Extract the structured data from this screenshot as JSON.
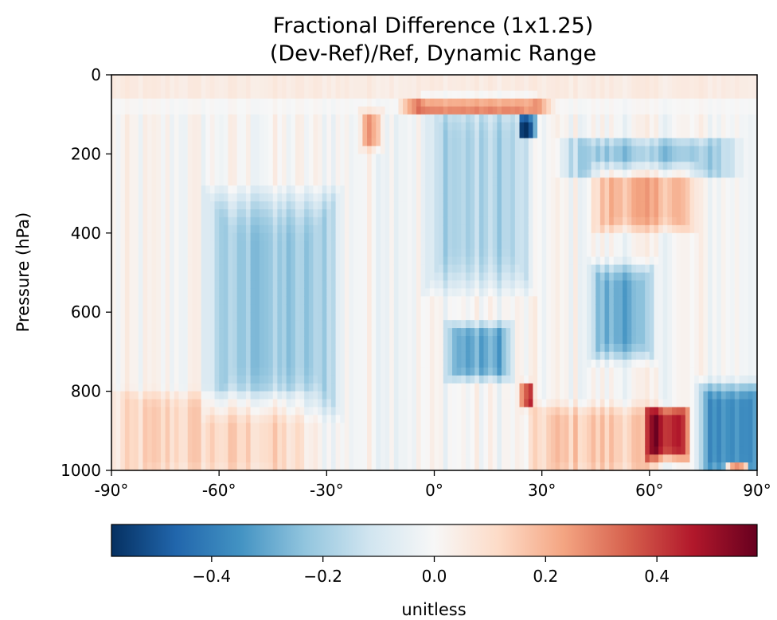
{
  "chart_data": {
    "type": "heatmap",
    "title": "Fractional Difference (1x1.25)",
    "subtitle": "(Dev-Ref)/Ref, Dynamic Range",
    "xlabel": "",
    "ylabel": "Pressure (hPa)",
    "xlim": [
      -90,
      90
    ],
    "ylim": [
      1000,
      0
    ],
    "y_inverted": true,
    "x_ticks": [
      -90,
      -60,
      -30,
      0,
      30,
      60,
      90
    ],
    "x_tick_labels": [
      "-90°",
      "-60°",
      "-30°",
      "0°",
      "30°",
      "60°",
      "90°"
    ],
    "y_ticks": [
      0,
      200,
      400,
      600,
      800,
      1000
    ],
    "y_tick_labels": [
      "0",
      "200",
      "400",
      "600",
      "800",
      "1000"
    ],
    "colormap": "RdBu_r",
    "colorbar": {
      "label": "unitless",
      "range": [
        -0.58,
        0.58
      ],
      "ticks": [
        -0.4,
        -0.2,
        0.0,
        0.2,
        0.4
      ],
      "tick_labels": [
        "−0.4",
        "−0.2",
        "0.0",
        "0.2",
        "0.4"
      ],
      "colors": [
        "#053061",
        "#2166ac",
        "#4393c3",
        "#92c5de",
        "#d1e5f0",
        "#f7f7f7",
        "#fddbc7",
        "#f4a582",
        "#d6604d",
        "#b2182b",
        "#67001f"
      ]
    },
    "features": [
      {
        "lat": [
          -60,
          -30
        ],
        "p": [
          350,
          800
        ],
        "value": -0.22
      },
      {
        "lat": [
          -85,
          -40
        ],
        "p": [
          820,
          1000
        ],
        "value": 0.12
      },
      {
        "lat": [
          -20,
          -15
        ],
        "p": [
          100,
          180
        ],
        "value": 0.22
      },
      {
        "lat": [
          -5,
          28
        ],
        "p": [
          70,
          100
        ],
        "value": 0.4
      },
      {
        "lat": [
          24,
          28
        ],
        "p": [
          110,
          160
        ],
        "value": -0.45
      },
      {
        "lat": [
          0,
          25
        ],
        "p": [
          100,
          500
        ],
        "value": -0.18
      },
      {
        "lat": [
          5,
          20
        ],
        "p": [
          640,
          760
        ],
        "value": -0.3
      },
      {
        "lat": [
          25,
          27
        ],
        "p": [
          780,
          840
        ],
        "value": 0.38
      },
      {
        "lat": [
          40,
          80
        ],
        "p": [
          170,
          250
        ],
        "value": -0.22
      },
      {
        "lat": [
          47,
          70
        ],
        "p": [
          240,
          380
        ],
        "value": 0.2
      },
      {
        "lat": [
          45,
          60
        ],
        "p": [
          500,
          700
        ],
        "value": -0.28
      },
      {
        "lat": [
          30,
          60
        ],
        "p": [
          850,
          1000
        ],
        "value": 0.15
      },
      {
        "lat": [
          60,
          70
        ],
        "p": [
          850,
          960
        ],
        "value": 0.45
      },
      {
        "lat": [
          75,
          90
        ],
        "p": [
          800,
          1000
        ],
        "value": -0.35
      },
      {
        "lat": [
          82,
          87
        ],
        "p": [
          980,
          1000
        ],
        "value": 0.55
      }
    ]
  }
}
